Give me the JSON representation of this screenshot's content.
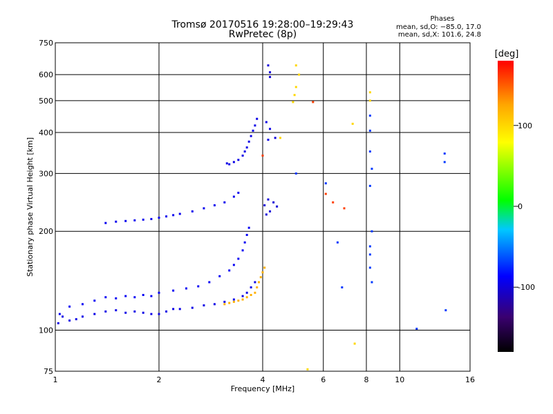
{
  "chart_data": {
    "type": "scatter",
    "title": "Tromsø 20170516 19:28:00–19:29:43",
    "subtitle": "RwPretec (8p)",
    "xlabel": "Frequency [MHz]",
    "ylabel": "Stationary phase Virtual Height [km]",
    "x_scale": "log",
    "y_scale": "log",
    "xlim": [
      1,
      16
    ],
    "ylim": [
      75,
      750
    ],
    "x_ticks": [
      1,
      2,
      4,
      6,
      8,
      10,
      16
    ],
    "y_ticks": [
      75,
      100,
      200,
      300,
      400,
      500,
      600,
      750
    ],
    "grid": true,
    "stats": {
      "header": "Phases",
      "line1": "mean, sd,O: −85.0, 17.0",
      "line2": "mean, sd,X: 101.6, 24.8"
    },
    "colorbar": {
      "label": "[deg]",
      "range": [
        -180,
        180
      ],
      "ticks": [
        100,
        0,
        -100
      ],
      "colors": [
        "#000000",
        "#3a0070",
        "#0000ff",
        "#00c8ff",
        "#00ff00",
        "#ffff00",
        "#ffa500",
        "#ff0000"
      ]
    },
    "series": [
      {
        "color_note": "blue low-frequency trace",
        "phase": -95,
        "points": [
          [
            1.02,
            105
          ],
          [
            1.05,
            110
          ],
          [
            1.1,
            107
          ],
          [
            1.15,
            108
          ],
          [
            1.2,
            110
          ],
          [
            1.3,
            112
          ],
          [
            1.4,
            114
          ],
          [
            1.5,
            115
          ],
          [
            1.6,
            113
          ],
          [
            1.7,
            114
          ],
          [
            1.8,
            113
          ],
          [
            1.9,
            112
          ],
          [
            2.0,
            112
          ],
          [
            2.1,
            114
          ],
          [
            2.2,
            116
          ],
          [
            2.3,
            116
          ],
          [
            2.5,
            117
          ],
          [
            2.7,
            119
          ],
          [
            2.9,
            120
          ],
          [
            3.1,
            122
          ],
          [
            3.3,
            124
          ],
          [
            3.5,
            127
          ],
          [
            3.6,
            130
          ],
          [
            3.7,
            135
          ],
          [
            3.8,
            140
          ]
        ]
      },
      {
        "color_note": "blue upper O-trace",
        "phase": -90,
        "points": [
          [
            1.03,
            112
          ],
          [
            1.1,
            118
          ],
          [
            1.2,
            120
          ],
          [
            1.3,
            123
          ],
          [
            1.4,
            126
          ],
          [
            1.5,
            125
          ],
          [
            1.6,
            127
          ],
          [
            1.7,
            126
          ],
          [
            1.8,
            128
          ],
          [
            1.9,
            127
          ],
          [
            2.0,
            130
          ],
          [
            2.2,
            132
          ],
          [
            2.4,
            134
          ],
          [
            2.6,
            136
          ],
          [
            2.8,
            140
          ],
          [
            3.0,
            146
          ],
          [
            3.2,
            152
          ],
          [
            3.3,
            158
          ],
          [
            3.4,
            165
          ],
          [
            3.5,
            175
          ],
          [
            3.55,
            185
          ],
          [
            3.6,
            195
          ],
          [
            3.65,
            205
          ]
        ]
      },
      {
        "color_note": "blue E-layer 215 km trace",
        "phase": -92,
        "points": [
          [
            1.4,
            212
          ],
          [
            1.5,
            214
          ],
          [
            1.6,
            215
          ],
          [
            1.7,
            216
          ],
          [
            1.8,
            217
          ],
          [
            1.9,
            218
          ],
          [
            2.0,
            220
          ],
          [
            2.1,
            222
          ],
          [
            2.2,
            224
          ],
          [
            2.3,
            226
          ],
          [
            2.5,
            230
          ],
          [
            2.7,
            235
          ],
          [
            2.9,
            240
          ],
          [
            3.1,
            245
          ],
          [
            3.3,
            255
          ],
          [
            3.4,
            262
          ]
        ]
      },
      {
        "color_note": "blue F-layer trace",
        "phase": -95,
        "points": [
          [
            3.15,
            322
          ],
          [
            3.2,
            320
          ],
          [
            3.3,
            325
          ],
          [
            3.4,
            330
          ],
          [
            3.5,
            340
          ],
          [
            3.55,
            350
          ],
          [
            3.6,
            360
          ],
          [
            3.65,
            375
          ],
          [
            3.7,
            390
          ],
          [
            3.75,
            405
          ],
          [
            3.8,
            420
          ],
          [
            3.85,
            440
          ],
          [
            4.1,
            430
          ],
          [
            4.15,
            380
          ],
          [
            4.2,
            410
          ]
        ]
      },
      {
        "color_note": "blue ~4 MHz patches",
        "phase": -100,
        "points": [
          [
            4.05,
            240
          ],
          [
            4.1,
            225
          ],
          [
            4.15,
            250
          ],
          [
            4.2,
            230
          ],
          [
            4.3,
            245
          ],
          [
            4.4,
            238
          ],
          [
            4.2,
            590
          ],
          [
            4.2,
            610
          ],
          [
            4.15,
            640
          ],
          [
            4.35,
            385
          ]
        ]
      },
      {
        "color_note": "orange X-trace",
        "phase": 120,
        "points": [
          [
            3.1,
            120
          ],
          [
            3.2,
            121
          ],
          [
            3.3,
            122
          ],
          [
            3.4,
            123
          ],
          [
            3.5,
            124
          ],
          [
            3.6,
            126
          ],
          [
            3.7,
            128
          ],
          [
            3.8,
            130
          ],
          [
            3.85,
            135
          ],
          [
            3.9,
            140
          ],
          [
            3.95,
            145
          ],
          [
            4.0,
            150
          ],
          [
            4.05,
            155
          ]
        ]
      },
      {
        "color_note": "yellow high points",
        "phase": 100,
        "points": [
          [
            4.9,
            495
          ],
          [
            4.95,
            520
          ],
          [
            5.0,
            550
          ],
          [
            5.1,
            600
          ],
          [
            5.0,
            640
          ],
          [
            4.5,
            385
          ],
          [
            7.3,
            425
          ],
          [
            8.2,
            530
          ],
          [
            8.2,
            500
          ],
          [
            7.4,
            91
          ],
          [
            5.4,
            76
          ]
        ]
      },
      {
        "color_note": "red/orange scattered",
        "phase": 160,
        "points": [
          [
            5.6,
            495
          ],
          [
            6.1,
            260
          ],
          [
            6.4,
            245
          ],
          [
            6.9,
            235
          ],
          [
            4.0,
            340
          ]
        ]
      },
      {
        "color_note": "cyan/blue scattered",
        "phase": -70,
        "points": [
          [
            6.6,
            185
          ],
          [
            6.8,
            135
          ],
          [
            8.2,
            450
          ],
          [
            8.2,
            405
          ],
          [
            8.2,
            350
          ],
          [
            8.3,
            310
          ],
          [
            8.2,
            275
          ],
          [
            8.3,
            200
          ],
          [
            8.2,
            170
          ],
          [
            8.2,
            155
          ],
          [
            8.3,
            140
          ],
          [
            13.5,
            345
          ],
          [
            13.5,
            325
          ],
          [
            13.6,
            115
          ],
          [
            11.2,
            101
          ],
          [
            5.0,
            300
          ],
          [
            6.1,
            280
          ],
          [
            8.2,
            180
          ]
        ]
      }
    ]
  }
}
